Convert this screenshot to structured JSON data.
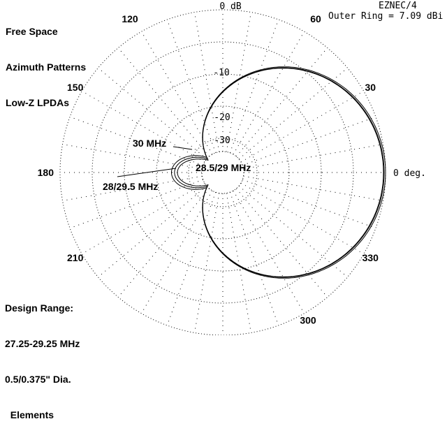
{
  "header": {
    "title_lines": [
      "Free Space",
      "Azimuth Patterns",
      "Low-Z LPDAs"
    ],
    "program": "EZNEC/4",
    "outer_ring": "Outer Ring = 7.09 dBi"
  },
  "footer": {
    "lines": [
      "Design Range:",
      "27.25-29.25 MHz",
      "0.5/0.375\" Dia.",
      "  Elements"
    ]
  },
  "chart_data": {
    "type": "polar",
    "title": "Azimuth Patterns",
    "outer_ring_dbi": 7.09,
    "grid": true,
    "radial_ticks": [
      "0 dB",
      "-10",
      "-20",
      "-30"
    ],
    "angle_labels": [
      {
        "deg": 0,
        "text": "0 deg."
      },
      {
        "deg": 30,
        "text": "30"
      },
      {
        "deg": 60,
        "text": "60"
      },
      {
        "deg": 120,
        "text": "120"
      },
      {
        "deg": 150,
        "text": "150"
      },
      {
        "deg": 180,
        "text": "180"
      },
      {
        "deg": 210,
        "text": "210"
      },
      {
        "deg": 300,
        "text": "300"
      },
      {
        "deg": 330,
        "text": "330"
      }
    ],
    "series_labels": [
      "30 MHz",
      "28/29.5 MHz",
      "28.5/29 MHz"
    ],
    "annotations": [
      {
        "text": "30 MHz",
        "series": "30 MHz"
      },
      {
        "text": "28/29.5 MHz",
        "series": "28/29.5 MHz"
      },
      {
        "text": "28.5/29 MHz",
        "series": "28.5/29 MHz"
      }
    ],
    "series": [
      {
        "name": "28.5/29 MHz",
        "front_back_db": 26
      },
      {
        "name": "28/29.5 MHz",
        "front_back_db": 24
      },
      {
        "name": "30 MHz",
        "front_back_db": 21
      }
    ]
  }
}
